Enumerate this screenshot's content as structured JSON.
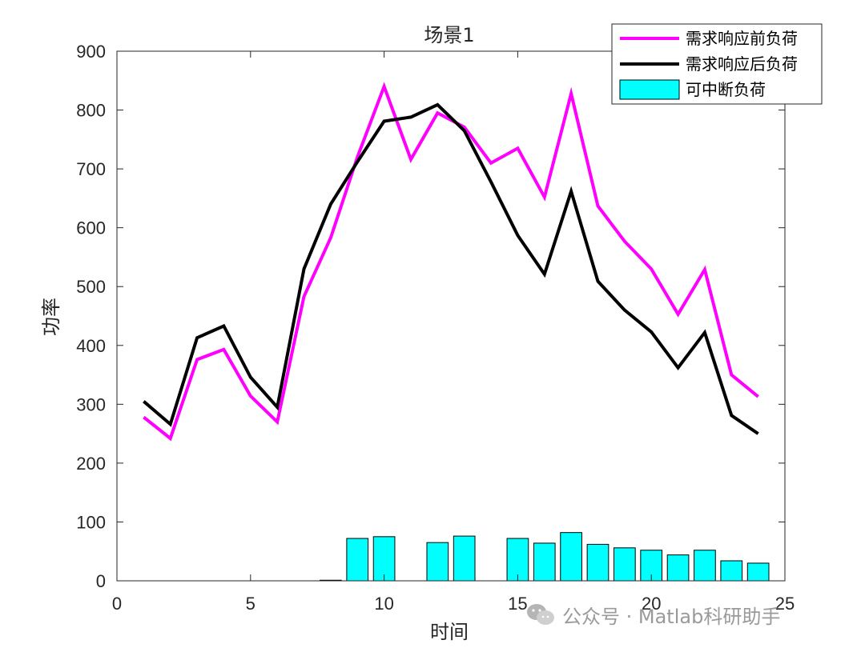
{
  "chart_data": {
    "type": "bar",
    "title": "场景1",
    "xlabel": "时间",
    "ylabel": "功率",
    "xlim": [
      0,
      25
    ],
    "ylim": [
      0,
      900
    ],
    "xticks": [
      0,
      5,
      10,
      15,
      20,
      25
    ],
    "yticks": [
      0,
      100,
      200,
      300,
      400,
      500,
      600,
      700,
      800,
      900
    ],
    "x": [
      1,
      2,
      3,
      4,
      5,
      6,
      7,
      8,
      9,
      10,
      11,
      12,
      13,
      14,
      15,
      16,
      17,
      18,
      19,
      20,
      21,
      22,
      23,
      24
    ],
    "series": [
      {
        "name": "需求响应前负荷",
        "type": "line",
        "color": "#ff00ff",
        "values": [
          278,
          242,
          376,
          393,
          314,
          270,
          483,
          583,
          720,
          840,
          716,
          795,
          771,
          710,
          735,
          652,
          828,
          637,
          577,
          530,
          453,
          529,
          350,
          313
        ]
      },
      {
        "name": "需求响应后负荷",
        "type": "line",
        "color": "#000000",
        "values": [
          305,
          266,
          413,
          433,
          346,
          295,
          530,
          640,
          712,
          781,
          788,
          809,
          765,
          678,
          587,
          521,
          662,
          509,
          460,
          423,
          362,
          422,
          281,
          250
        ]
      },
      {
        "name": "可中断负荷",
        "type": "bar",
        "color": "#00ffff",
        "values": [
          0,
          0,
          0,
          0,
          0,
          0,
          0,
          1,
          72,
          75,
          0,
          65,
          76,
          0,
          72,
          64,
          82,
          62,
          56,
          52,
          44,
          52,
          34,
          30
        ]
      }
    ],
    "legend": {
      "placement": "top-right"
    },
    "grid": false
  },
  "watermark": {
    "text": "公众号 · Matlab科研助手",
    "icon": "wechat-icon"
  }
}
